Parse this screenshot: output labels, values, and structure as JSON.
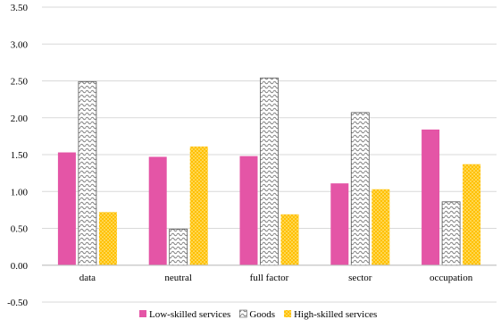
{
  "chart_data": {
    "type": "bar",
    "title": "",
    "xlabel": "",
    "ylabel": "",
    "categories": [
      "data",
      "neutral",
      "full factor",
      "sector",
      "occupation"
    ],
    "series": [
      {
        "name": "Low-skilled services",
        "values": [
          1.53,
          1.47,
          1.48,
          1.11,
          1.84
        ],
        "color": "#e455a6",
        "pattern": "solid"
      },
      {
        "name": "Goods",
        "values": [
          2.49,
          0.49,
          2.54,
          2.07,
          0.86
        ],
        "color": "#a6a6a6",
        "pattern": "wave"
      },
      {
        "name": "High-skilled services",
        "values": [
          0.72,
          1.61,
          0.69,
          1.03,
          1.37
        ],
        "color": "#ffc000",
        "pattern": "dots"
      }
    ],
    "ylim": [
      -0.5,
      3.5
    ],
    "yticks": [
      "-0.50",
      "0.00",
      "0.50",
      "1.00",
      "1.50",
      "2.00",
      "2.50",
      "3.00",
      "3.50"
    ],
    "grid": true,
    "legend_position": "bottom"
  }
}
